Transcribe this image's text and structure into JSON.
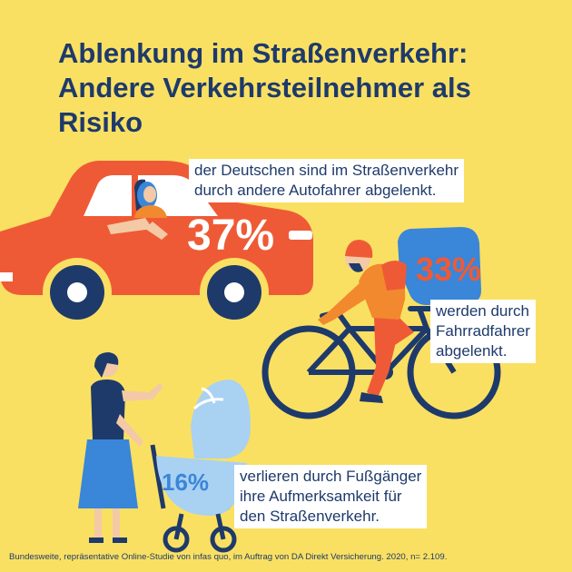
{
  "title": {
    "line1": "Ablenkung im Straßenverkehr:",
    "line2": "Andere Verkehrsteilnehmer als",
    "line3": "Risiko"
  },
  "stats": {
    "car": {
      "percent": "37%",
      "text_line1": "der Deutschen sind im Straßenverkehr",
      "text_line2": "durch andere Autofahrer abgelenkt."
    },
    "cyclist": {
      "percent": "33%",
      "text_line1": "werden durch",
      "text_line2": "Fahrradfahrer",
      "text_line3": "abgelenkt."
    },
    "pedestrian": {
      "percent": "16%",
      "text_line1": "verlieren durch Fußgänger",
      "text_line2": "ihre Aufmerksamkeit für",
      "text_line3": "den Straßenverkehr."
    }
  },
  "footnote": "Bundesweite, repräsentative Online-Studie von infas quo, im Auftrag von DA Direkt Versicherung. 2020, n= 2.109.",
  "colors": {
    "background": "#FAE062",
    "navy": "#1E3A6B",
    "car_red": "#EF5A36",
    "cyclist_orange": "#F2892E",
    "blue_light": "#A9D1F2",
    "blue_mid": "#3A86D8",
    "white": "#FFFFFF"
  },
  "icons": [
    "car-icon",
    "driver-icon",
    "cyclist-icon",
    "bicycle-icon",
    "pedestrian-icon",
    "stroller-icon",
    "speech-tag-icon"
  ]
}
